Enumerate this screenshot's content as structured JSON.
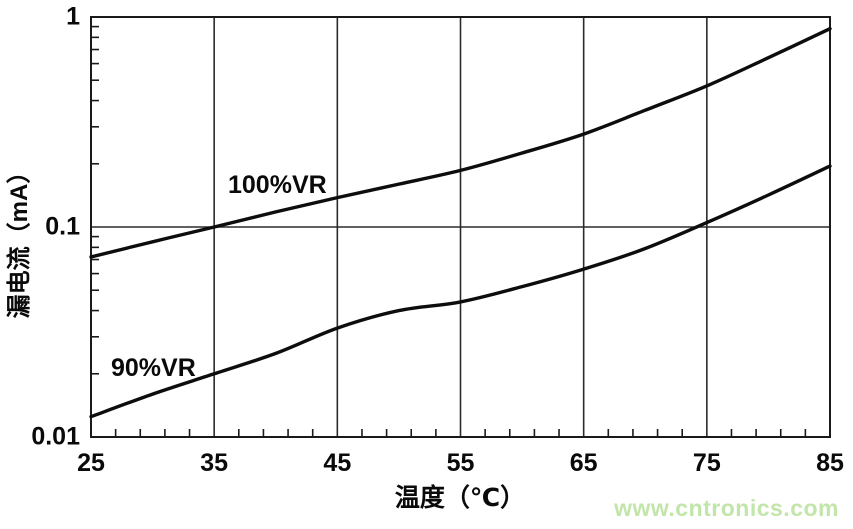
{
  "chart_data": {
    "type": "line",
    "title": "",
    "xlabel": "温度（℃）",
    "ylabel": "漏电流（mA）",
    "xlim": [
      25,
      85
    ],
    "ylim": [
      0.01,
      1
    ],
    "y_scale": "log",
    "x_ticks": [
      25,
      35,
      45,
      55,
      65,
      75,
      85
    ],
    "x_minor_step": 2,
    "y_ticks": [
      1,
      0.1,
      0.01
    ],
    "y_tick_labels": [
      "1",
      "0.1",
      "0.01"
    ],
    "grid_x_major": [
      35,
      45,
      55,
      65,
      75
    ],
    "grid_y_major": [
      0.1
    ],
    "grid": "major-on",
    "legend_position": "inline-curve-labels",
    "x": [
      25,
      30,
      35,
      40,
      45,
      50,
      55,
      60,
      65,
      70,
      75,
      80,
      85
    ],
    "series": [
      {
        "name": "100%VR",
        "values": [
          0.072,
          0.085,
          0.1,
          0.118,
          0.138,
          0.16,
          0.186,
          0.225,
          0.277,
          0.36,
          0.47,
          0.64,
          0.88
        ]
      },
      {
        "name": "90%VR",
        "values": [
          0.0125,
          0.016,
          0.02,
          0.025,
          0.033,
          0.04,
          0.044,
          0.052,
          0.063,
          0.079,
          0.105,
          0.142,
          0.195
        ]
      }
    ]
  },
  "watermark": {
    "text": "www.cntronics.com",
    "color": "#c2e5a9"
  },
  "style": {
    "axis_color": "#1a1a1a",
    "grid_color": "#2b2b2b",
    "curve_color": "#0d0d0d"
  }
}
